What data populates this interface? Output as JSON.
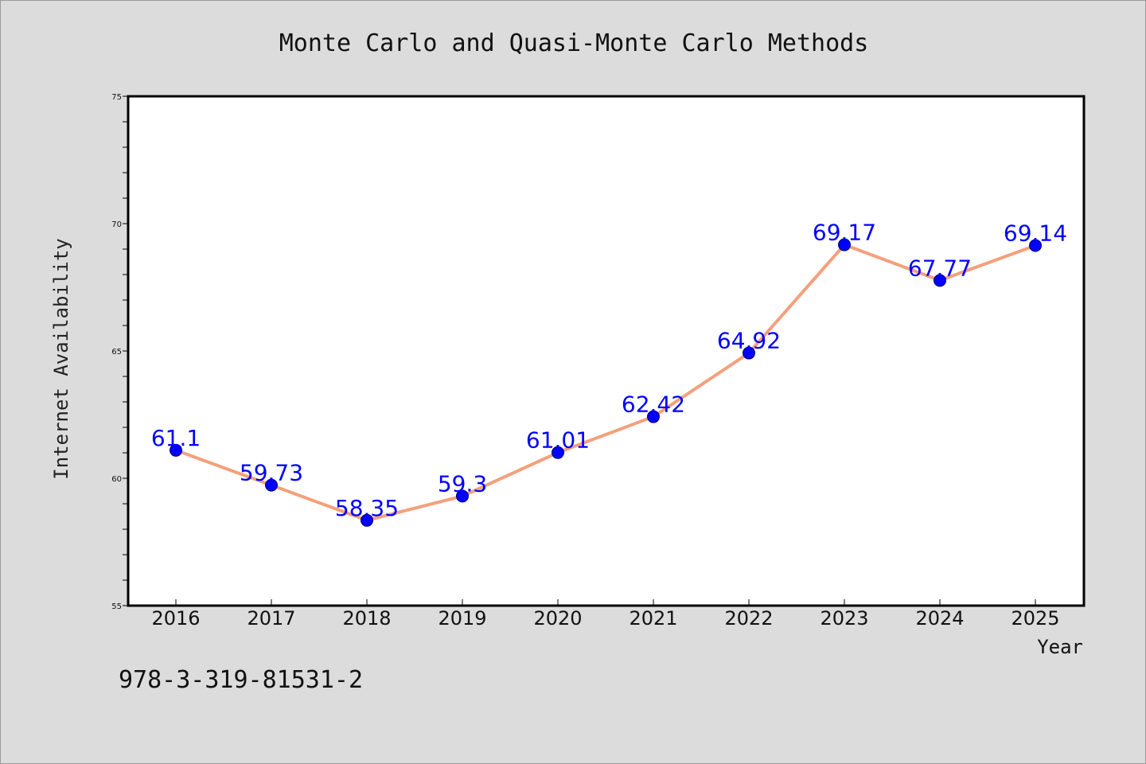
{
  "chart_data": {
    "type": "line",
    "title": "Monte Carlo and Quasi-Monte Carlo Methods",
    "xlabel": "Year",
    "ylabel": "Internet Availability",
    "x": [
      "2016",
      "2017",
      "2018",
      "2019",
      "2020",
      "2021",
      "2022",
      "2023",
      "2024",
      "2025"
    ],
    "series": [
      {
        "values": [
          61.1,
          59.73,
          58.35,
          59.3,
          61.01,
          62.42,
          64.92,
          69.17,
          67.77,
          69.14
        ],
        "labels": [
          "61.1",
          "59.73",
          "58.35",
          "59.3",
          "61.01",
          "62.42",
          "64.92",
          "69.17",
          "67.77",
          "69.14"
        ]
      }
    ],
    "ylim": [
      55,
      75
    ],
    "yticks": [
      55,
      60,
      65,
      70,
      75
    ],
    "ytick_labels": [
      "55",
      "60",
      "65",
      "70",
      "75"
    ],
    "y_minor_step": 1,
    "grid": false,
    "line_color": "#f4a07c",
    "marker_color": "#0000ff",
    "label_color": "#0000ff"
  },
  "footer_code": "978-3-319-81531-2"
}
